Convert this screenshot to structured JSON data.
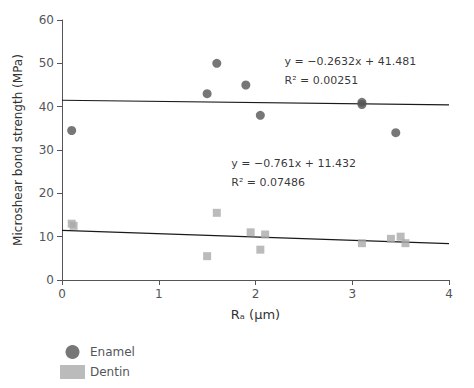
{
  "chart_data": {
    "type": "scatter",
    "xlabel": "Rₐ (μm)",
    "ylabel": "Microshear bond strength (MPa)",
    "xlim": [
      0,
      4
    ],
    "ylim": [
      0,
      60
    ],
    "xticks": [
      0,
      1,
      2,
      3,
      4
    ],
    "yticks": [
      0,
      10,
      20,
      30,
      40,
      50,
      60
    ],
    "grid": false,
    "legend": "lower left",
    "series": [
      {
        "name": "Enamel",
        "type": "scatter",
        "color": "#555555",
        "marker": "circle",
        "x": [
          0.1,
          1.5,
          1.6,
          1.9,
          2.05,
          3.1,
          3.1,
          3.45
        ],
        "values": [
          34.5,
          43.0,
          50.0,
          45.0,
          38.0,
          41.0,
          40.5,
          34.0
        ]
      },
      {
        "name": "Dentin",
        "type": "scatter",
        "color": "#aaaaaa",
        "marker": "square",
        "x": [
          0.1,
          0.12,
          1.5,
          1.6,
          1.95,
          2.05,
          2.1,
          3.1,
          3.4,
          3.5,
          3.55
        ],
        "values": [
          13.0,
          12.5,
          5.5,
          15.5,
          11.0,
          7.0,
          10.5,
          8.5,
          9.5,
          10.0,
          8.5
        ]
      },
      {
        "type": "line",
        "color": "#1a1a1a",
        "x": [
          0,
          4
        ],
        "values": [
          41.481,
          40.4282
        ]
      },
      {
        "type": "line",
        "color": "#1a1a1a",
        "x": [
          0,
          4
        ],
        "values": [
          11.432,
          8.388
        ]
      }
    ],
    "annotations": [
      {
        "text": "y = −0.2632x + 41.481",
        "x": 2.3,
        "y": 50.5
      },
      {
        "text": "R² = 0.00251",
        "x": 2.3,
        "y": 46.0
      },
      {
        "text": "y = −0.761x + 11.432",
        "x": 1.75,
        "y": 27.0
      },
      {
        "text": "R² = 0.07486",
        "x": 1.75,
        "y": 22.5
      }
    ]
  }
}
